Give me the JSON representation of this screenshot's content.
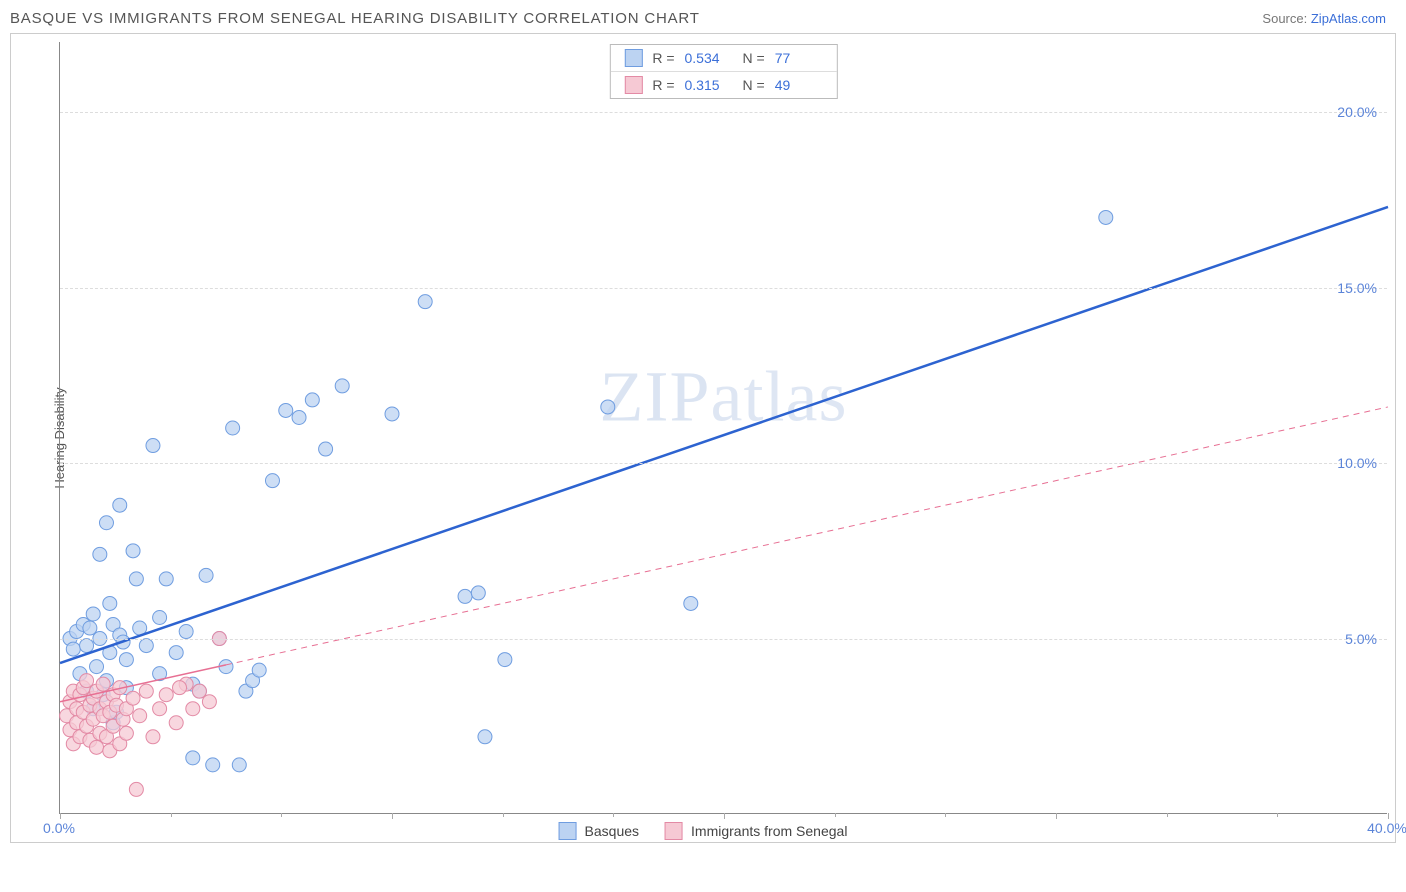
{
  "title": "BASQUE VS IMMIGRANTS FROM SENEGAL HEARING DISABILITY CORRELATION CHART",
  "source_label": "Source:",
  "source_link": "ZipAtlas.com",
  "ylabel": "Hearing Disability",
  "watermark": "ZIPatlas",
  "chart": {
    "type": "scatter",
    "xlim": [
      0,
      40
    ],
    "ylim": [
      0,
      22
    ],
    "xticks": [
      0,
      10,
      20,
      30,
      40
    ],
    "xtick_labels": [
      "0.0%",
      "",
      "",
      "",
      "40.0%"
    ],
    "yticks": [
      5,
      10,
      15,
      20
    ],
    "ytick_labels": [
      "5.0%",
      "10.0%",
      "15.0%",
      "20.0%"
    ],
    "x_minor_ticks": [
      3.33,
      6.67,
      13.33,
      16.67,
      23.33,
      26.67,
      33.33,
      36.67
    ],
    "grid_color": "#dddddd",
    "axis_color": "#888888",
    "background_color": "#ffffff",
    "label_color": "#5b84d8",
    "series": [
      {
        "name": "Basques",
        "marker_color_fill": "#bcd3f2",
        "marker_color_stroke": "#6f9de0",
        "marker_radius": 7,
        "trend_color": "#2d63d0",
        "trend_width": 2.5,
        "trend_dash": "none",
        "trend": {
          "x1": 0,
          "y1": 4.3,
          "x2": 40,
          "y2": 17.3
        },
        "r": "0.534",
        "n": "77",
        "points": [
          [
            0.3,
            5.0
          ],
          [
            0.4,
            4.7
          ],
          [
            0.5,
            5.2
          ],
          [
            0.6,
            4.0
          ],
          [
            0.7,
            5.4
          ],
          [
            0.8,
            3.5
          ],
          [
            0.8,
            4.8
          ],
          [
            0.9,
            5.3
          ],
          [
            1.0,
            3.0
          ],
          [
            1.0,
            5.7
          ],
          [
            1.1,
            4.2
          ],
          [
            1.2,
            7.4
          ],
          [
            1.2,
            5.0
          ],
          [
            1.3,
            3.4
          ],
          [
            1.4,
            3.8
          ],
          [
            1.4,
            8.3
          ],
          [
            1.5,
            4.6
          ],
          [
            1.5,
            6.0
          ],
          [
            1.6,
            5.4
          ],
          [
            1.6,
            2.6
          ],
          [
            1.7,
            2.9
          ],
          [
            1.8,
            8.8
          ],
          [
            1.8,
            5.1
          ],
          [
            1.9,
            4.9
          ],
          [
            2.0,
            3.6
          ],
          [
            2.0,
            4.4
          ],
          [
            2.2,
            7.5
          ],
          [
            2.3,
            6.7
          ],
          [
            2.4,
            5.3
          ],
          [
            2.6,
            4.8
          ],
          [
            2.8,
            10.5
          ],
          [
            3.0,
            4.0
          ],
          [
            3.0,
            5.6
          ],
          [
            3.2,
            6.7
          ],
          [
            3.5,
            4.6
          ],
          [
            3.8,
            5.2
          ],
          [
            4.0,
            1.6
          ],
          [
            4.0,
            3.7
          ],
          [
            4.2,
            3.5
          ],
          [
            4.4,
            6.8
          ],
          [
            4.6,
            1.4
          ],
          [
            4.8,
            5.0
          ],
          [
            5.0,
            4.2
          ],
          [
            5.2,
            11.0
          ],
          [
            5.4,
            1.4
          ],
          [
            5.6,
            3.5
          ],
          [
            5.8,
            3.8
          ],
          [
            6.0,
            4.1
          ],
          [
            6.4,
            9.5
          ],
          [
            6.8,
            11.5
          ],
          [
            7.2,
            11.3
          ],
          [
            7.6,
            11.8
          ],
          [
            8.0,
            10.4
          ],
          [
            8.5,
            12.2
          ],
          [
            10.0,
            11.4
          ],
          [
            11.0,
            14.6
          ],
          [
            12.2,
            6.2
          ],
          [
            12.6,
            6.3
          ],
          [
            12.8,
            2.2
          ],
          [
            13.4,
            4.4
          ],
          [
            16.5,
            11.6
          ],
          [
            19.0,
            6.0
          ],
          [
            31.5,
            17.0
          ]
        ]
      },
      {
        "name": "Immigrants from Senegal",
        "marker_color_fill": "#f6c9d4",
        "marker_color_stroke": "#e38aa5",
        "marker_radius": 7,
        "trend_color": "#e76f93",
        "trend_solid_until_x": 5,
        "trend_width": 1.5,
        "trend_dash": "6,5",
        "trend": {
          "x1": 0,
          "y1": 3.2,
          "x2": 40,
          "y2": 11.6
        },
        "r": "0.315",
        "n": "49",
        "points": [
          [
            0.2,
            2.8
          ],
          [
            0.3,
            3.2
          ],
          [
            0.3,
            2.4
          ],
          [
            0.4,
            3.5
          ],
          [
            0.4,
            2.0
          ],
          [
            0.5,
            3.0
          ],
          [
            0.5,
            2.6
          ],
          [
            0.6,
            3.4
          ],
          [
            0.6,
            2.2
          ],
          [
            0.7,
            3.6
          ],
          [
            0.7,
            2.9
          ],
          [
            0.8,
            2.5
          ],
          [
            0.8,
            3.8
          ],
          [
            0.9,
            2.1
          ],
          [
            0.9,
            3.1
          ],
          [
            1.0,
            3.3
          ],
          [
            1.0,
            2.7
          ],
          [
            1.1,
            1.9
          ],
          [
            1.1,
            3.5
          ],
          [
            1.2,
            2.3
          ],
          [
            1.2,
            3.0
          ],
          [
            1.3,
            2.8
          ],
          [
            1.3,
            3.7
          ],
          [
            1.4,
            2.2
          ],
          [
            1.4,
            3.2
          ],
          [
            1.5,
            1.8
          ],
          [
            1.5,
            2.9
          ],
          [
            1.6,
            3.4
          ],
          [
            1.6,
            2.5
          ],
          [
            1.7,
            3.1
          ],
          [
            1.8,
            2.0
          ],
          [
            1.8,
            3.6
          ],
          [
            1.9,
            2.7
          ],
          [
            2.0,
            3.0
          ],
          [
            2.0,
            2.3
          ],
          [
            2.2,
            3.3
          ],
          [
            2.3,
            0.7
          ],
          [
            2.4,
            2.8
          ],
          [
            2.6,
            3.5
          ],
          [
            2.8,
            2.2
          ],
          [
            3.0,
            3.0
          ],
          [
            3.2,
            3.4
          ],
          [
            3.5,
            2.6
          ],
          [
            3.8,
            3.7
          ],
          [
            4.0,
            3.0
          ],
          [
            4.2,
            3.5
          ],
          [
            4.5,
            3.2
          ],
          [
            4.8,
            5.0
          ],
          [
            3.6,
            3.6
          ]
        ]
      }
    ]
  },
  "legend_top_rows": [
    {
      "swatch_fill": "#bcd3f2",
      "swatch_stroke": "#6f9de0",
      "r_label": "R =",
      "r_val": "0.534",
      "n_label": "N =",
      "n_val": "77"
    },
    {
      "swatch_fill": "#f6c9d4",
      "swatch_stroke": "#e38aa5",
      "r_label": "R =",
      "r_val": "0.315",
      "n_label": "N =",
      "n_val": "49"
    }
  ],
  "legend_bottom": [
    {
      "swatch_fill": "#bcd3f2",
      "swatch_stroke": "#6f9de0",
      "label": "Basques"
    },
    {
      "swatch_fill": "#f6c9d4",
      "swatch_stroke": "#e38aa5",
      "label": "Immigrants from Senegal"
    }
  ]
}
